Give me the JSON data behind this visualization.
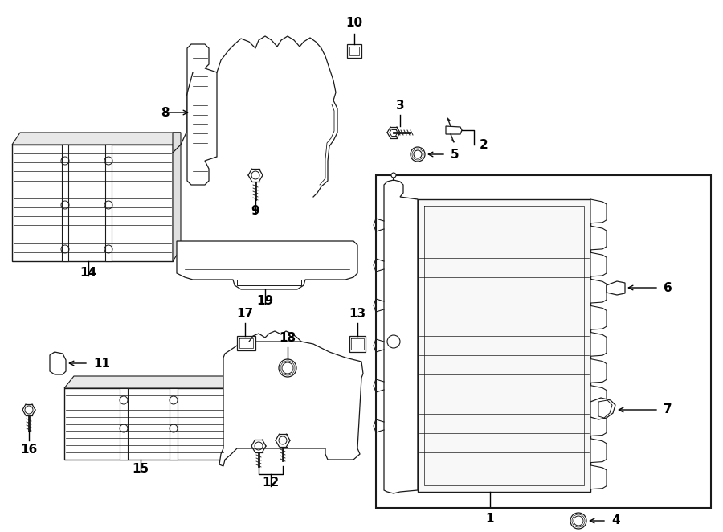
{
  "background_color": "#ffffff",
  "line_color": "#1a1a1a",
  "text_color": "#000000",
  "fig_width": 9.0,
  "fig_height": 6.62,
  "dpi": 100
}
